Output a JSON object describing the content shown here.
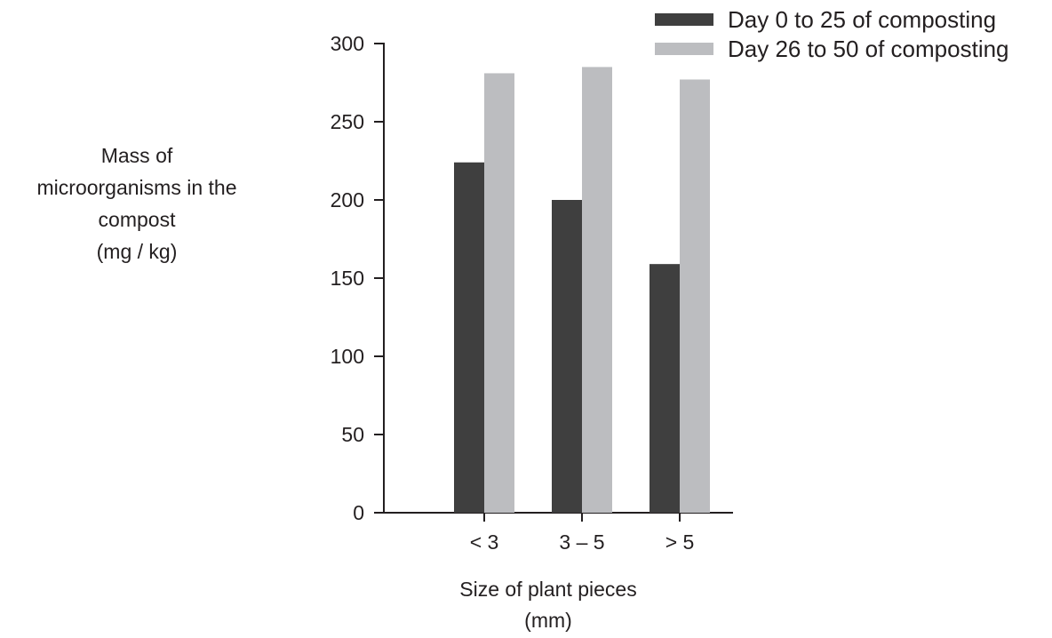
{
  "chart_data": {
    "type": "bar",
    "categories": [
      "< 3",
      "3 – 5",
      "> 5"
    ],
    "series": [
      {
        "name": "Day 0 to 25 of composting",
        "values": [
          224,
          200,
          159
        ],
        "color": "#3f3f3f"
      },
      {
        "name": "Day 26 to 50 of composting",
        "values": [
          281,
          285,
          277
        ],
        "color": "#bcbdc0"
      }
    ],
    "ylabel_lines": [
      "Mass of",
      "microorganisms in the",
      "compost",
      "(mg / kg)"
    ],
    "xlabel_lines": [
      "Size of plant pieces",
      "(mm)"
    ],
    "ylim": [
      0,
      300
    ],
    "yticks": [
      0,
      50,
      100,
      150,
      200,
      250,
      300
    ],
    "grid": false,
    "legend_position": "top-right"
  }
}
